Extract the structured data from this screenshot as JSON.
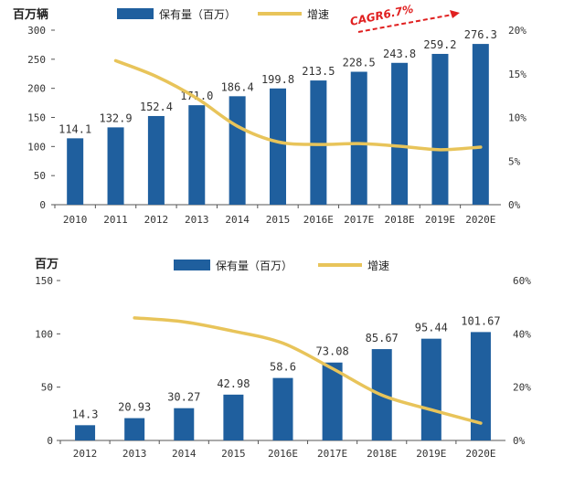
{
  "colors": {
    "bar": "#1f5f9e",
    "line": "#e8c45a",
    "cagr": "#e02020",
    "axis": "#555555"
  },
  "chart_data": [
    {
      "type": "bar+line",
      "unit_label": "百万辆",
      "legend": {
        "bar": "保有量（百万）",
        "line": "增速",
        "position": "top"
      },
      "categories": [
        "2010",
        "2011",
        "2012",
        "2013",
        "2014",
        "2015",
        "2016E",
        "2017E",
        "2018E",
        "2019E",
        "2020E"
      ],
      "bar_values": [
        114.1,
        132.9,
        152.4,
        171.0,
        186.4,
        199.8,
        213.5,
        228.5,
        243.8,
        259.2,
        276.3
      ],
      "bar_value_labels": [
        "114.1",
        "132.9",
        "152.4",
        "171.0",
        "186.4",
        "199.8",
        "213.5",
        "228.5",
        "243.8",
        "259.2",
        "276.3"
      ],
      "growth_pct": [
        null,
        16.5,
        14.7,
        12.2,
        9.0,
        7.2,
        6.9,
        7.0,
        6.7,
        6.3,
        6.6
      ],
      "y_left": {
        "min": 0,
        "max": 300,
        "ticks": [
          "0",
          "50",
          "100",
          "150",
          "200",
          "250",
          "300"
        ]
      },
      "y_right": {
        "min": 0,
        "max": 20,
        "ticks": [
          "0%",
          "5%",
          "10%",
          "15%",
          "20%"
        ]
      },
      "annotation": "CAGR6.7%"
    },
    {
      "type": "bar+line",
      "unit_label": "百万",
      "legend": {
        "bar": "保有量（百万）",
        "line": "增速",
        "position": "top"
      },
      "categories": [
        "2012",
        "2013",
        "2014",
        "2015",
        "2016E",
        "2017E",
        "2018E",
        "2019E",
        "2020E"
      ],
      "bar_values": [
        14.3,
        20.93,
        30.27,
        42.98,
        58.6,
        73.08,
        85.67,
        95.44,
        101.67
      ],
      "bar_value_labels": [
        "14.3",
        "20.93",
        "30.27",
        "42.98",
        "58.6",
        "73.08",
        "85.67",
        "95.44",
        "101.67"
      ],
      "growth_pct": [
        null,
        46,
        44.5,
        41,
        36.5,
        27,
        17,
        11.5,
        6.5
      ],
      "y_left": {
        "min": 0,
        "max": 150,
        "ticks": [
          "0",
          "50",
          "100",
          "150"
        ]
      },
      "y_right": {
        "min": 0,
        "max": 60,
        "ticks": [
          "0%",
          "20%",
          "40%",
          "60%"
        ]
      }
    }
  ]
}
